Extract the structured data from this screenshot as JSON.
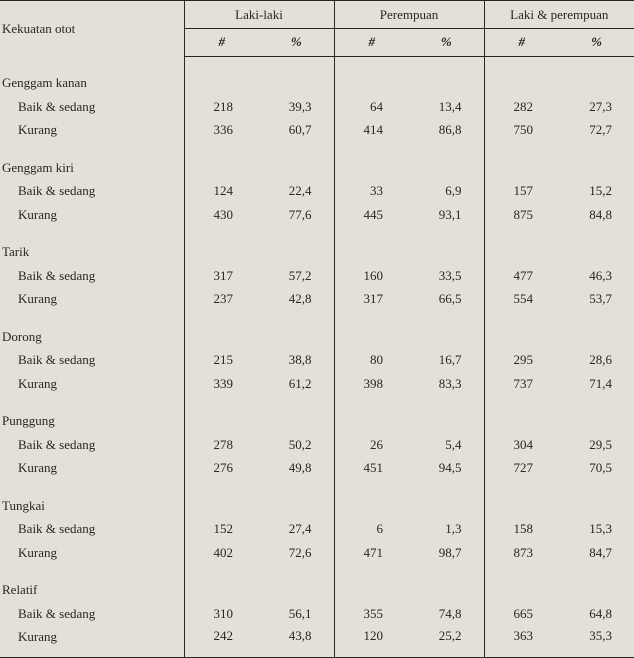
{
  "header": {
    "rowlabel": "Kekuatan otot",
    "groups": [
      "Laki-laki",
      "Perempuan",
      "Laki & perempuan"
    ],
    "subcols": {
      "count": "#",
      "percent": "%"
    }
  },
  "categories": [
    {
      "name": "Genggam kanan",
      "rows": [
        {
          "label": "Baik & sedang",
          "m_n": "218",
          "m_p": "39,3",
          "f_n": "64",
          "f_p": "13,4",
          "t_n": "282",
          "t_p": "27,3"
        },
        {
          "label": "Kurang",
          "m_n": "336",
          "m_p": "60,7",
          "f_n": "414",
          "f_p": "86,8",
          "t_n": "750",
          "t_p": "72,7"
        }
      ]
    },
    {
      "name": "Genggam kiri",
      "rows": [
        {
          "label": "Baik & sedang",
          "m_n": "124",
          "m_p": "22,4",
          "f_n": "33",
          "f_p": "6,9",
          "t_n": "157",
          "t_p": "15,2"
        },
        {
          "label": "Kurang",
          "m_n": "430",
          "m_p": "77,6",
          "f_n": "445",
          "f_p": "93,1",
          "t_n": "875",
          "t_p": "84,8"
        }
      ]
    },
    {
      "name": "Tarik",
      "rows": [
        {
          "label": "Baik & sedang",
          "m_n": "317",
          "m_p": "57,2",
          "f_n": "160",
          "f_p": "33,5",
          "t_n": "477",
          "t_p": "46,3"
        },
        {
          "label": "Kurang",
          "m_n": "237",
          "m_p": "42,8",
          "f_n": "317",
          "f_p": "66,5",
          "t_n": "554",
          "t_p": "53,7"
        }
      ]
    },
    {
      "name": "Dorong",
      "rows": [
        {
          "label": "Baik & sedang",
          "m_n": "215",
          "m_p": "38,8",
          "f_n": "80",
          "f_p": "16,7",
          "t_n": "295",
          "t_p": "28,6"
        },
        {
          "label": "Kurang",
          "m_n": "339",
          "m_p": "61,2",
          "f_n": "398",
          "f_p": "83,3",
          "t_n": "737",
          "t_p": "71,4"
        }
      ]
    },
    {
      "name": "Punggung",
      "rows": [
        {
          "label": "Baik & sedang",
          "m_n": "278",
          "m_p": "50,2",
          "f_n": "26",
          "f_p": "5,4",
          "t_n": "304",
          "t_p": "29,5"
        },
        {
          "label": "Kurang",
          "m_n": "276",
          "m_p": "49,8",
          "f_n": "451",
          "f_p": "94,5",
          "t_n": "727",
          "t_p": "70,5"
        }
      ]
    },
    {
      "name": "Tungkai",
      "rows": [
        {
          "label": "Baik & sedang",
          "m_n": "152",
          "m_p": "27,4",
          "f_n": "6",
          "f_p": "1,3",
          "t_n": "158",
          "t_p": "15,3"
        },
        {
          "label": "Kurang",
          "m_n": "402",
          "m_p": "72,6",
          "f_n": "471",
          "f_p": "98,7",
          "t_n": "873",
          "t_p": "84,7"
        }
      ]
    },
    {
      "name": "Relatif",
      "rows": [
        {
          "label": "Baik & sedang",
          "m_n": "310",
          "m_p": "56,1",
          "f_n": "355",
          "f_p": "74,8",
          "t_n": "665",
          "t_p": "64,8"
        },
        {
          "label": "Kurang",
          "m_n": "242",
          "m_p": "43,8",
          "f_n": "120",
          "f_p": "25,2",
          "t_n": "363",
          "t_p": "35,3"
        }
      ]
    }
  ]
}
